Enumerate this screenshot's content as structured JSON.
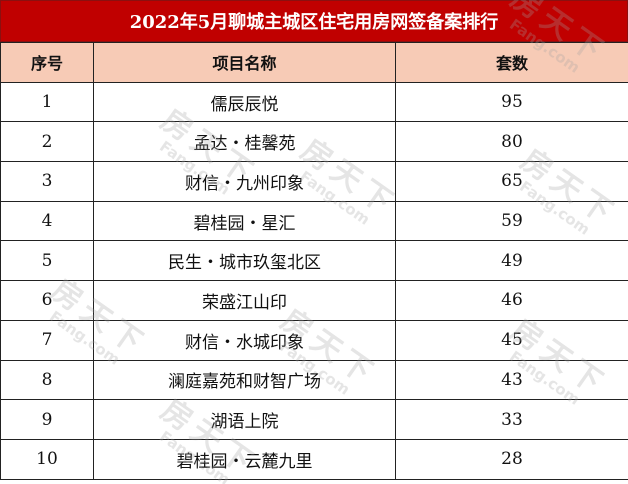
{
  "title": "2022年5月聊城主城区住宅用房网签备案排行",
  "columns": [
    "序号",
    "项目名称",
    "套数"
  ],
  "rows": [
    {
      "rank": "1",
      "name": "儒辰辰悦",
      "count": "95"
    },
    {
      "rank": "2",
      "name": "孟达・桂馨苑",
      "count": "80"
    },
    {
      "rank": "3",
      "name": "财信・九州印象",
      "count": "65"
    },
    {
      "rank": "4",
      "name": "碧桂园・星汇",
      "count": "59"
    },
    {
      "rank": "5",
      "name": "民生・城市玖玺北区",
      "count": "49"
    },
    {
      "rank": "6",
      "name": "荣盛江山印",
      "count": "46"
    },
    {
      "rank": "7",
      "name": "财信・水城印象",
      "count": "45"
    },
    {
      "rank": "8",
      "name": "澜庭嘉苑和财智广场",
      "count": "43"
    },
    {
      "rank": "9",
      "name": "湖语上院",
      "count": "33"
    },
    {
      "rank": "10",
      "name": "碧桂园・云麓九里",
      "count": "28"
    }
  ],
  "watermark": {
    "brand": "房天下",
    "domain": "Fang.com"
  },
  "colors": {
    "title_bg": "#c00000",
    "header_bg": "#f7cbb6"
  }
}
